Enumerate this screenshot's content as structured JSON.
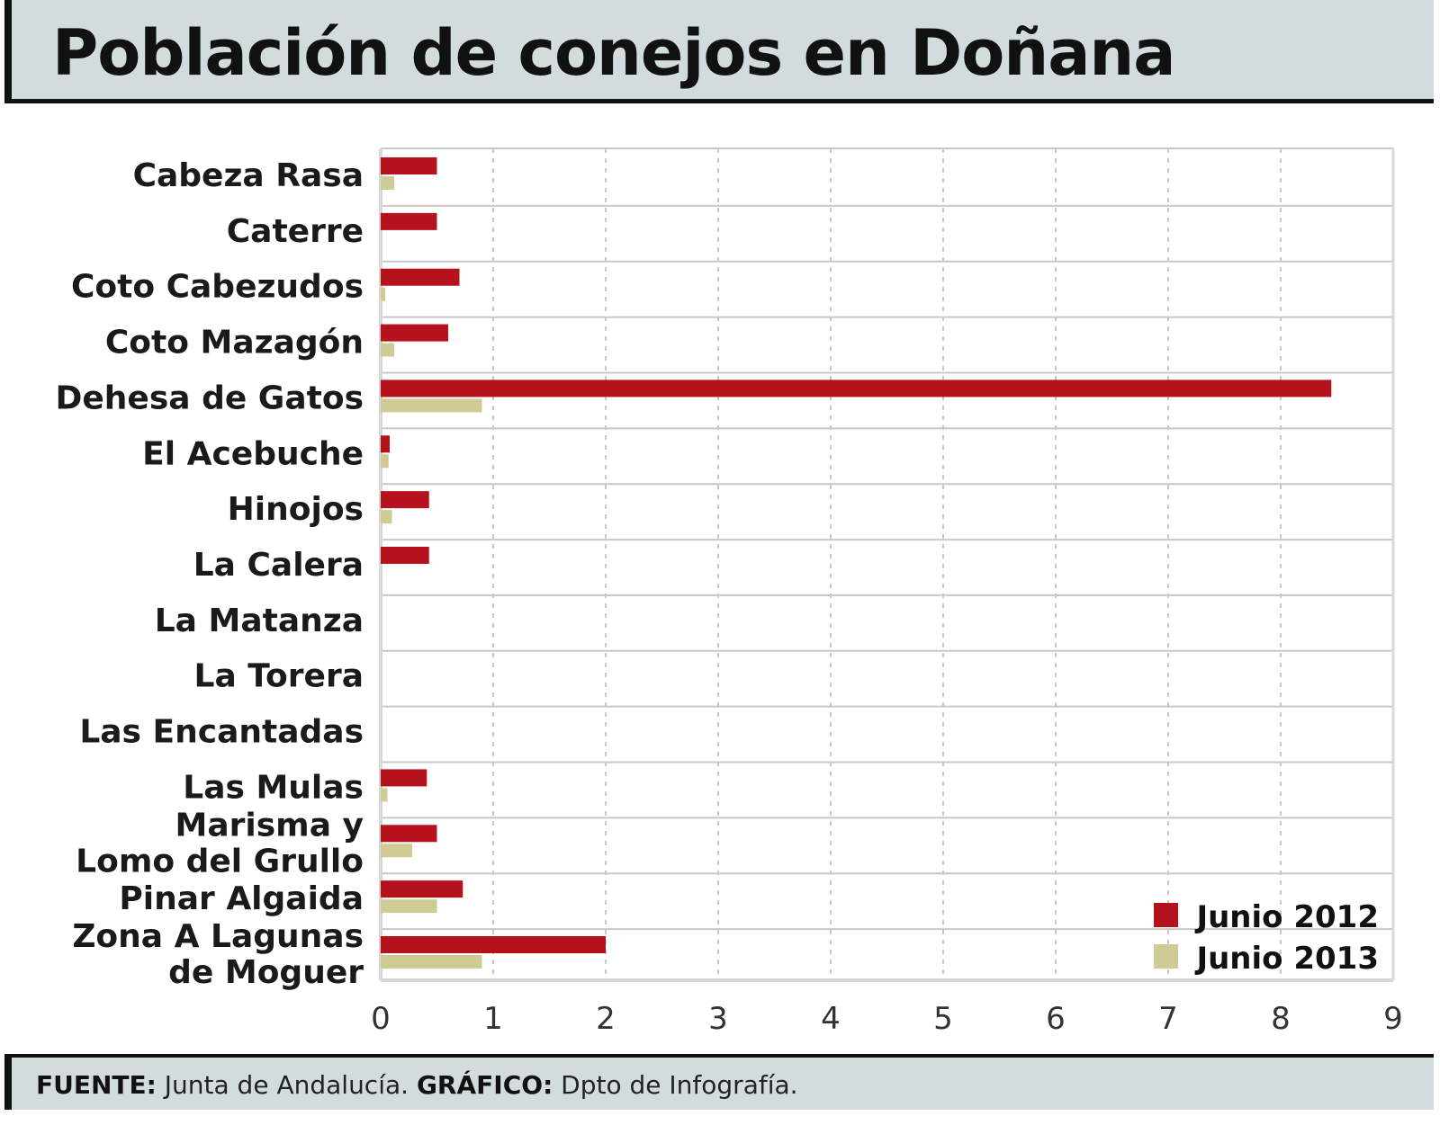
{
  "colors": {
    "junio_2012": "#b5121b",
    "junio_2013": "#cfcb95",
    "band": "#d3dcdc",
    "grid": "#c8c8c8"
  },
  "source": {
    "fuente_label": "FUENTE:",
    "fuente_value": "Junta de Andalucía.",
    "grafico_label": "GRÁFICO:",
    "grafico_value": "Dpto de Infografía."
  },
  "chart_data": {
    "type": "bar",
    "orientation": "horizontal",
    "title": "Población de conejos en Doñana",
    "xlabel": "",
    "ylabel": "",
    "xlim": [
      0,
      9
    ],
    "xticks": [
      0,
      1,
      2,
      3,
      4,
      5,
      6,
      7,
      8,
      9
    ],
    "grid": true,
    "legend_position": "bottom-right",
    "categories": [
      "Cabeza Rasa",
      "Caterre",
      "Coto Cabezudos",
      "Coto Mazagón",
      "Dehesa de Gatos",
      "El Acebuche",
      "Hinojos",
      "La Calera",
      "La Matanza",
      "La Torera",
      "Las Encantadas",
      "Las Mulas",
      "Marisma y\nLomo del Grullo",
      "Pinar Algaida",
      "Zona A Lagunas\nde Moguer"
    ],
    "series": [
      {
        "name": "Junio 2012",
        "values": [
          0.5,
          0.5,
          0.7,
          0.6,
          8.45,
          0.08,
          0.43,
          0.43,
          0,
          0,
          0,
          0.41,
          0.5,
          0.73,
          2.0
        ]
      },
      {
        "name": "Junio 2013",
        "values": [
          0.12,
          0,
          0.04,
          0.12,
          0.9,
          0.07,
          0.1,
          0,
          0,
          0,
          0,
          0.06,
          0.28,
          0.5,
          0.9
        ]
      }
    ]
  }
}
